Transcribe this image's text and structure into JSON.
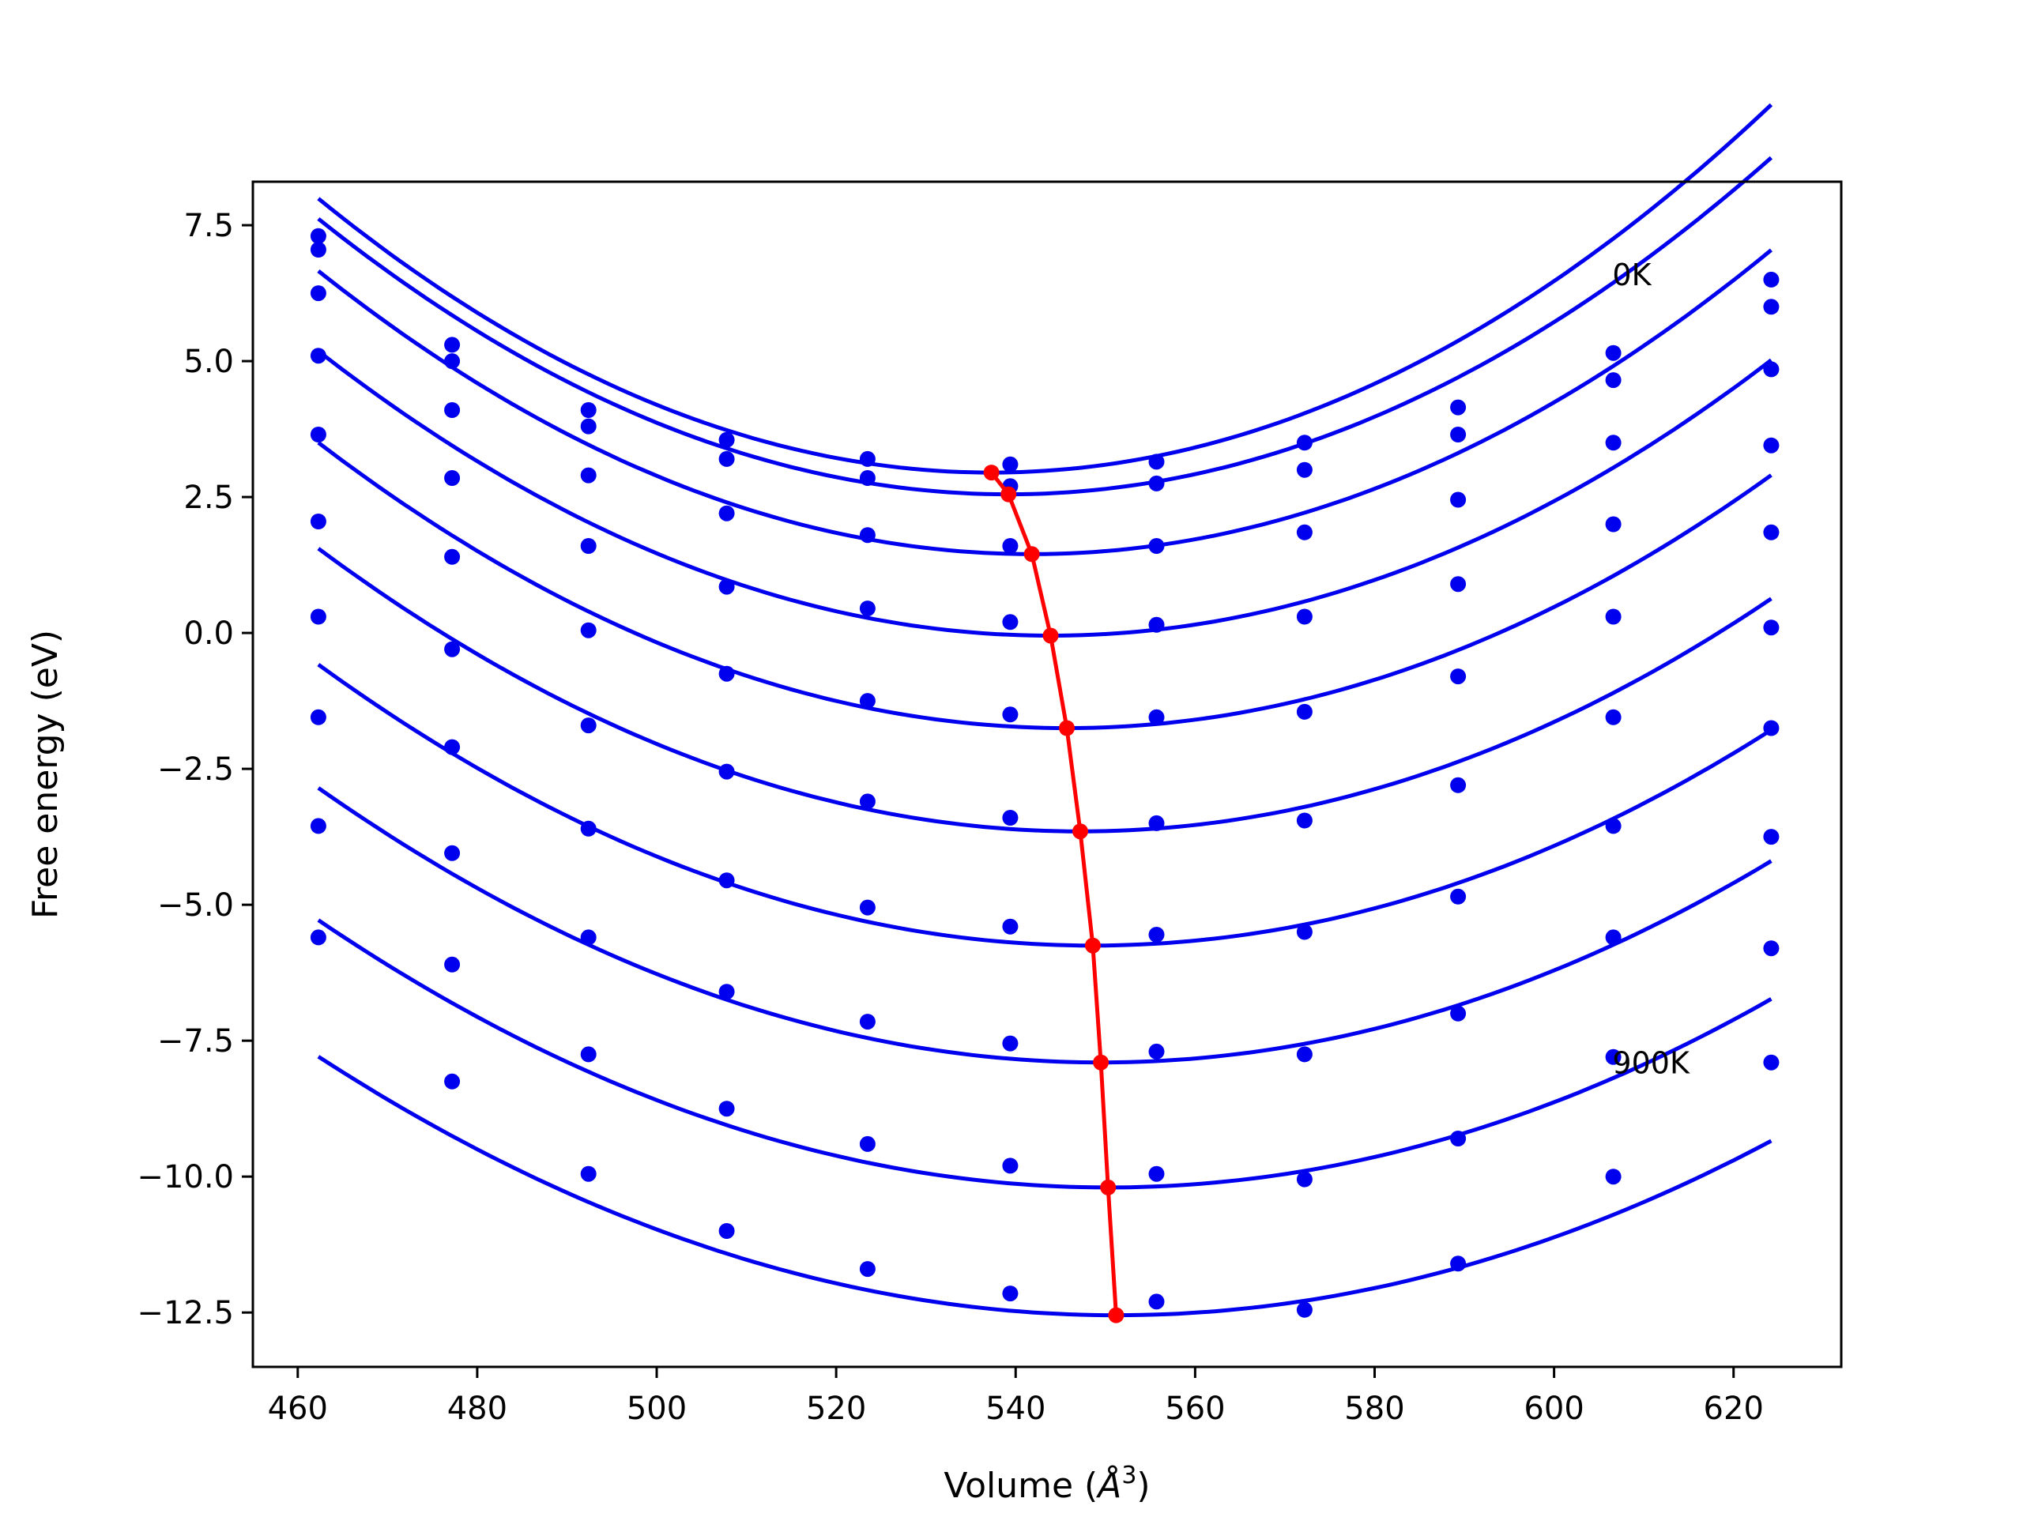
{
  "chart_data": {
    "type": "scatter",
    "title": "",
    "xlabel": "Volume (",
    "xlabel_math": "Å",
    "xlabel_sup": "3",
    "xlabel_close": ")",
    "ylabel": "Free energy (eV)",
    "xlim": [
      455,
      632
    ],
    "ylim": [
      -13.5,
      8.3
    ],
    "xticks": [
      460,
      480,
      500,
      520,
      540,
      560,
      580,
      600,
      620
    ],
    "yticks": [
      7.5,
      5.0,
      2.5,
      0.0,
      -2.5,
      -5.0,
      -7.5,
      -10.0,
      -12.5
    ],
    "xtick_labels": [
      "460",
      "480",
      "500",
      "520",
      "540",
      "560",
      "580",
      "600",
      "620"
    ],
    "ytick_labels": [
      "7.5",
      "5.0",
      "2.5",
      "0.0",
      "−2.5",
      "−5.0",
      "−7.5",
      "−10.0",
      "−12.5"
    ],
    "grid": false,
    "colors": {
      "data": "#0000ee",
      "minima": "#ff0000",
      "axes": "#000000"
    },
    "annotations": [
      {
        "text": "0K",
        "x": 606.5,
        "y": 6.6
      },
      {
        "text": "900K",
        "x": 606.5,
        "y": -7.9
      }
    ],
    "volumes": [
      462.3,
      477.2,
      492.4,
      507.8,
      523.5,
      539.4,
      555.7,
      572.2,
      589.3,
      606.6,
      624.2
    ],
    "series": [
      {
        "values": [
          7.3,
          5.3,
          4.1,
          3.55,
          3.2,
          3.1,
          3.15,
          3.5,
          4.15,
          5.15,
          6.5
        ],
        "fit": {
          "a": 0.000896,
          "vmin": 537.3,
          "emin": 2.95
        }
      },
      {
        "values": [
          7.05,
          5.0,
          3.8,
          3.2,
          2.85,
          2.7,
          2.75,
          3.0,
          3.65,
          4.65,
          6.0
        ],
        "fit": {
          "a": 0.000857,
          "vmin": 539.2,
          "emin": 2.55
        }
      },
      {
        "values": [
          6.25,
          4.1,
          2.9,
          2.2,
          1.8,
          1.6,
          1.6,
          1.85,
          2.45,
          3.5,
          4.85
        ],
        "fit": {
          "a": 0.000824,
          "vmin": 541.8,
          "emin": 1.45
        }
      },
      {
        "values": [
          5.1,
          2.85,
          1.6,
          0.85,
          0.45,
          0.2,
          0.15,
          0.3,
          0.9,
          2.0,
          3.45
        ],
        "fit": {
          "a": 0.000786,
          "vmin": 543.9,
          "emin": -0.05
        }
      },
      {
        "values": [
          3.65,
          1.4,
          0.05,
          -0.75,
          -1.25,
          -1.5,
          -1.55,
          -1.45,
          -0.8,
          0.3,
          1.85
        ],
        "fit": {
          "a": 0.000755,
          "vmin": 545.7,
          "emin": -1.75
        }
      },
      {
        "values": [
          2.05,
          -0.3,
          -1.7,
          -2.55,
          -3.1,
          -3.4,
          -3.5,
          -3.45,
          -2.8,
          -1.55,
          0.1
        ],
        "fit": {
          "a": 0.000722,
          "vmin": 547.2,
          "emin": -3.65
        }
      },
      {
        "values": [
          0.3,
          -2.1,
          -3.6,
          -4.55,
          -5.05,
          -5.4,
          -5.55,
          -5.5,
          -4.85,
          -3.55,
          -1.75
        ],
        "fit": {
          "a": 0.000694,
          "vmin": 548.6,
          "emin": -5.75
        }
      },
      {
        "values": [
          -1.55,
          -4.05,
          -5.6,
          -6.6,
          -7.15,
          -7.55,
          -7.7,
          -7.75,
          -7.0,
          -5.6,
          -3.75
        ],
        "fit": {
          "a": 0.000664,
          "vmin": 549.5,
          "emin": -7.9
        }
      },
      {
        "values": [
          -3.55,
          -6.1,
          -7.75,
          -8.75,
          -9.4,
          -9.8,
          -9.95,
          -10.05,
          -9.3,
          -7.8,
          -5.8
        ],
        "fit": {
          "a": 0.000635,
          "vmin": 550.3,
          "emin": -10.2
        }
      },
      {
        "values": [
          -5.6,
          -8.25,
          -9.95,
          -11.0,
          -11.7,
          -12.15,
          -12.3,
          -12.45,
          -11.6,
          -10.0,
          -7.9
        ],
        "fit": {
          "a": 0.000602,
          "vmin": 551.2,
          "emin": -12.55
        }
      }
    ],
    "minima": {
      "x": [
        537.3,
        539.2,
        541.8,
        543.9,
        545.7,
        547.2,
        548.6,
        549.5,
        550.3,
        551.2
      ],
      "y": [
        2.95,
        2.55,
        1.45,
        -0.05,
        -1.75,
        -3.65,
        -5.75,
        -7.9,
        -10.2,
        -12.55
      ]
    }
  }
}
